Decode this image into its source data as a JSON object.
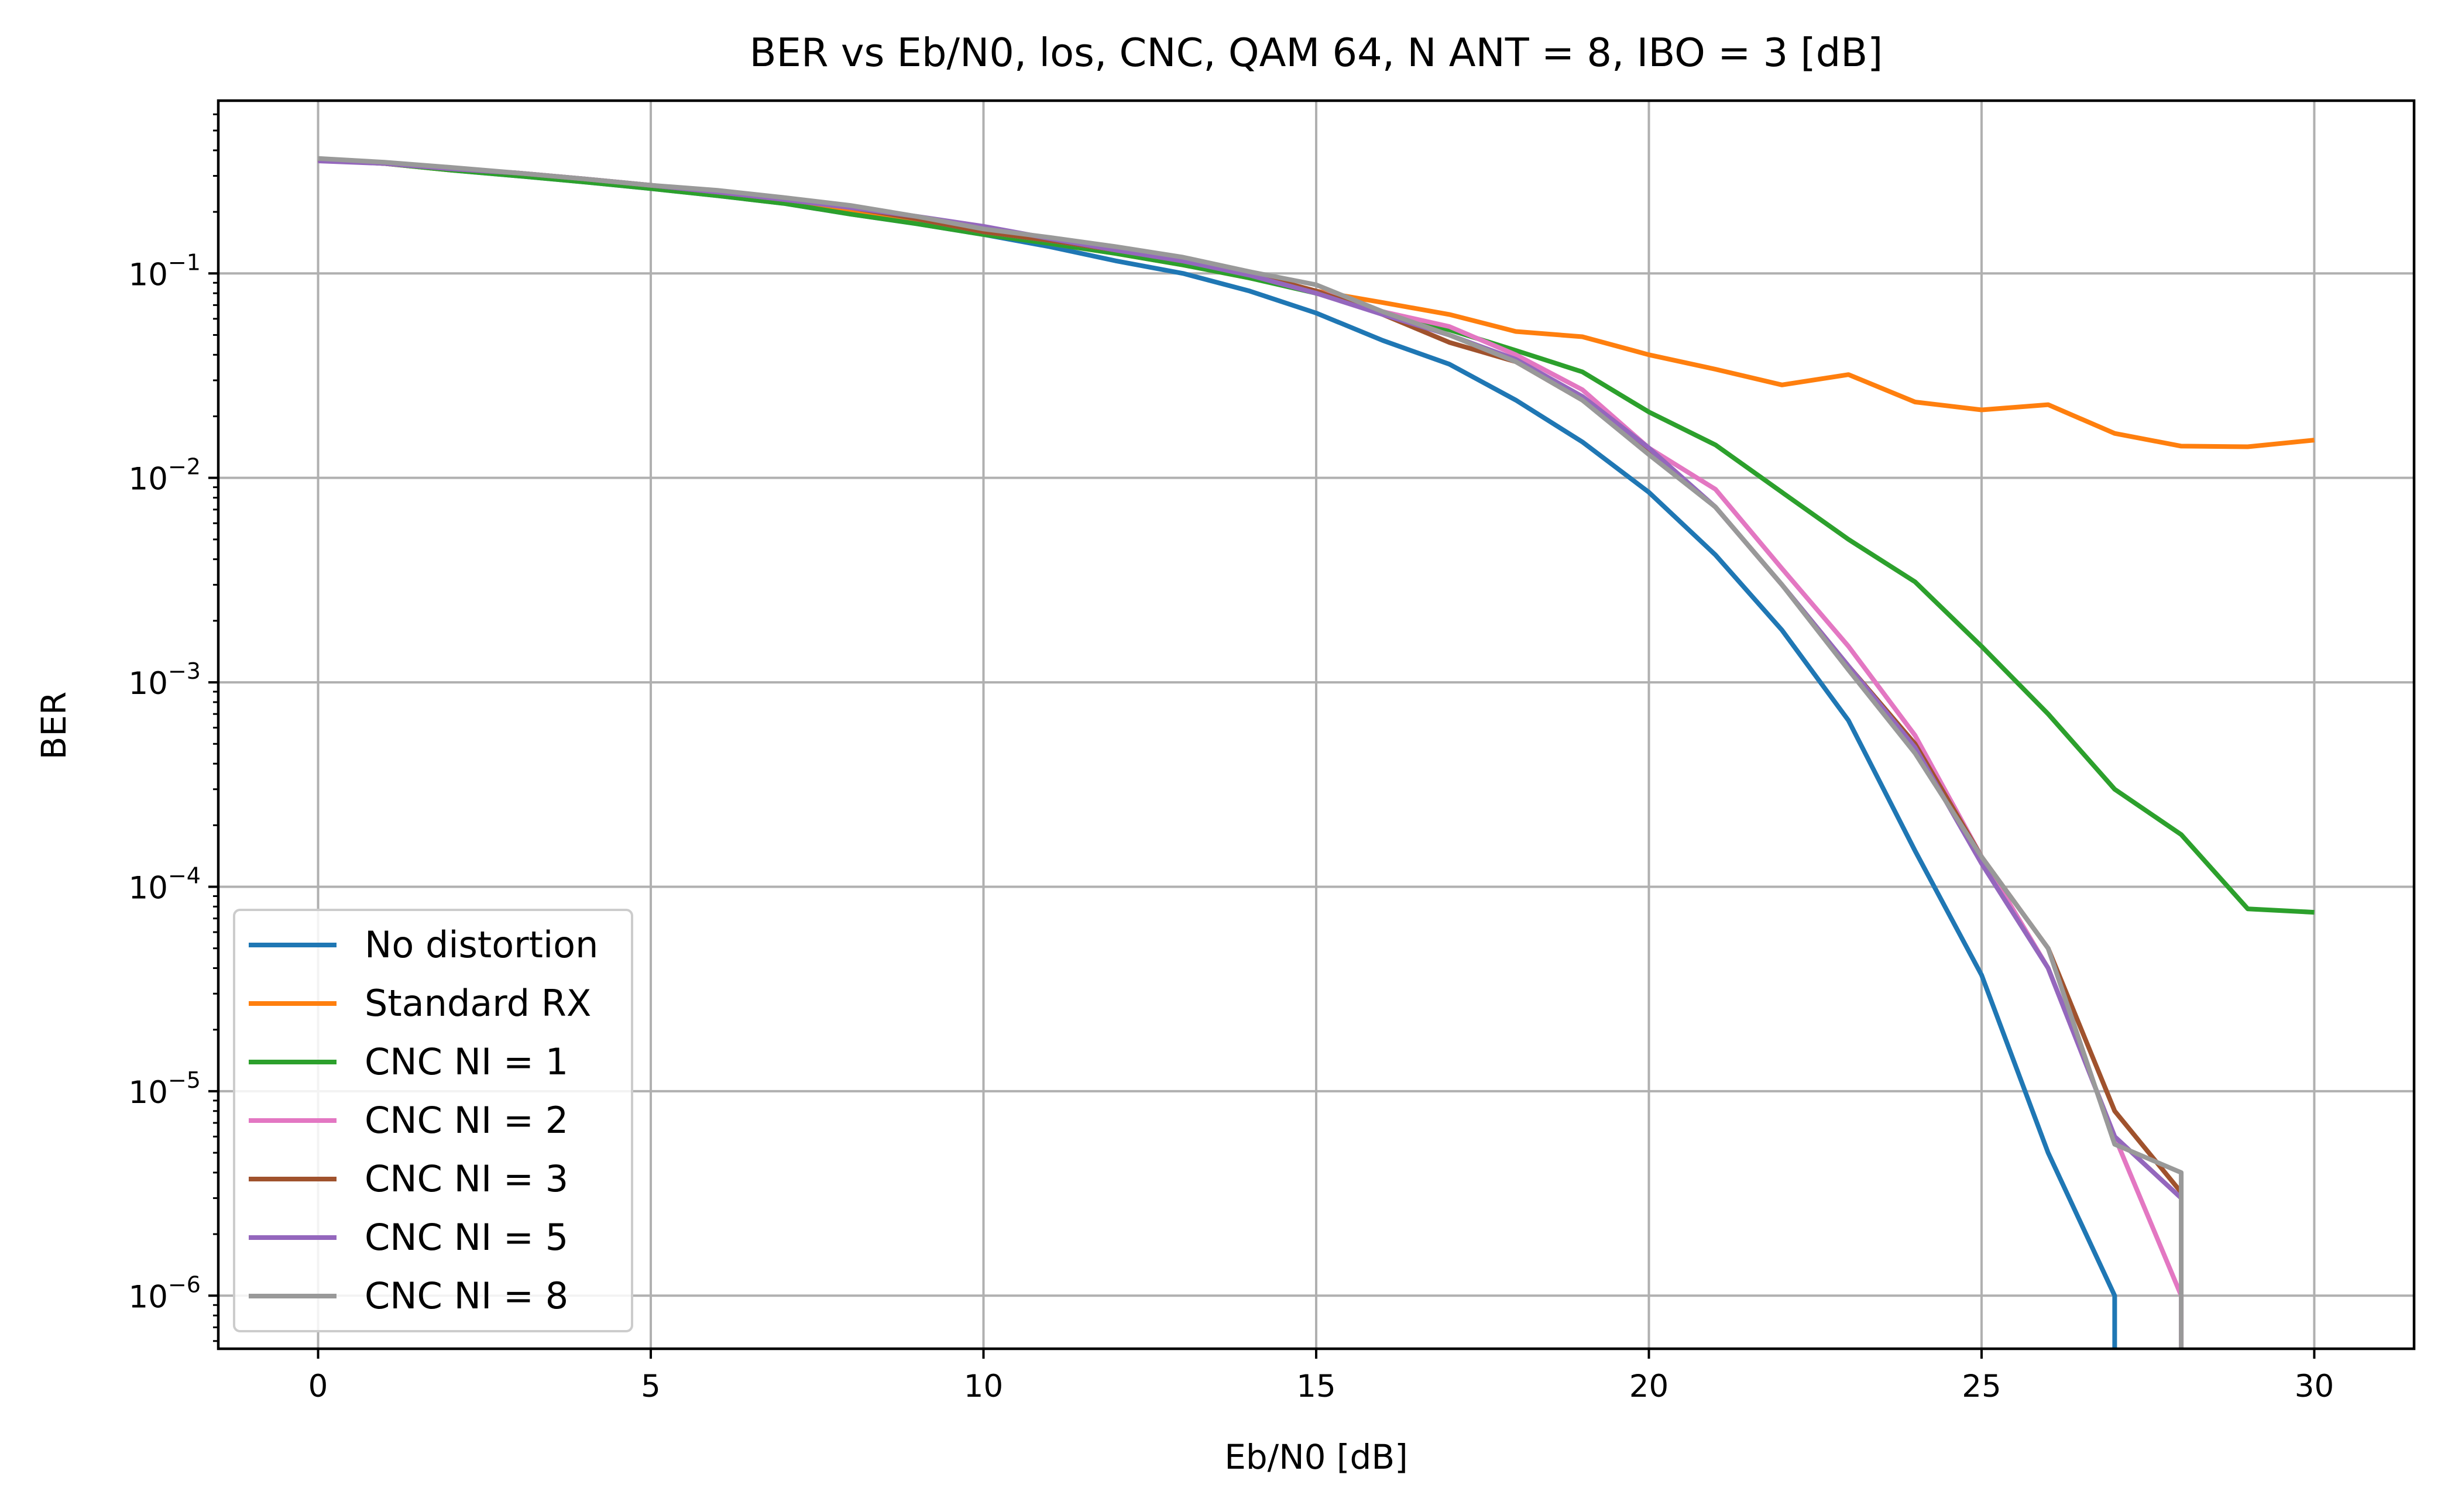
{
  "chart_data": {
    "type": "line",
    "title": "BER vs Eb/N0, los, CNC, QAM 64, N ANT = 8, IBO = 3 [dB]",
    "xlabel": "Eb/N0 [dB]",
    "ylabel": "BER",
    "xscale": "linear",
    "yscale": "log",
    "xlim": [
      -1.5,
      31.5
    ],
    "ylim": [
      5.5e-07,
      0.7
    ],
    "xticks": [
      0,
      5,
      10,
      15,
      20,
      25,
      30
    ],
    "xtick_labels": [
      "0",
      "5",
      "10",
      "15",
      "20",
      "25",
      "30"
    ],
    "yticks": [
      1e-06,
      1e-05,
      0.0001,
      0.001,
      0.01,
      0.1
    ],
    "ytick_labels": [
      {
        "base": "10",
        "exp": "−6"
      },
      {
        "base": "10",
        "exp": "−5"
      },
      {
        "base": "10",
        "exp": "−4"
      },
      {
        "base": "10",
        "exp": "−3"
      },
      {
        "base": "10",
        "exp": "−2"
      },
      {
        "base": "10",
        "exp": "−1"
      }
    ],
    "grid": true,
    "legend_position": "lower-left",
    "series": [
      {
        "name": "No distortion",
        "color": "#1f77b4",
        "x": [
          0,
          1,
          2,
          3,
          4,
          5,
          6,
          7,
          8,
          9,
          10,
          11,
          12,
          13,
          14,
          15,
          16,
          17,
          18,
          19,
          20,
          21,
          22,
          23,
          24,
          25,
          26,
          27,
          27
        ],
        "y": [
          0.36,
          0.345,
          0.32,
          0.3,
          0.28,
          0.26,
          0.24,
          0.22,
          0.195,
          0.175,
          0.155,
          0.135,
          0.115,
          0.1,
          0.082,
          0.064,
          0.047,
          0.036,
          0.024,
          0.015,
          0.0085,
          0.0042,
          0.0018,
          0.00065,
          0.00015,
          3.7e-05,
          5e-06,
          1e-06,
          5.5e-07
        ]
      },
      {
        "name": "Standard RX",
        "color": "#ff7f0e",
        "x": [
          0,
          1,
          2,
          3,
          4,
          5,
          6,
          7,
          8,
          9,
          10,
          11,
          12,
          13,
          14,
          15,
          16,
          17,
          18,
          19,
          20,
          21,
          22,
          23,
          24,
          25,
          26,
          27,
          28,
          29,
          30
        ],
        "y": [
          0.36,
          0.345,
          0.32,
          0.305,
          0.285,
          0.265,
          0.245,
          0.225,
          0.205,
          0.18,
          0.16,
          0.14,
          0.125,
          0.11,
          0.095,
          0.082,
          0.072,
          0.063,
          0.052,
          0.049,
          0.04,
          0.034,
          0.0285,
          0.032,
          0.0235,
          0.0215,
          0.0228,
          0.0165,
          0.0143,
          0.0142,
          0.0153
        ]
      },
      {
        "name": "CNC NI = 1",
        "color": "#2ca02c",
        "x": [
          0,
          1,
          2,
          3,
          4,
          5,
          6,
          7,
          8,
          9,
          10,
          11,
          12,
          13,
          14,
          15,
          16,
          17,
          18,
          19,
          20,
          21,
          22,
          23,
          24,
          25,
          26,
          27,
          28,
          29,
          30
        ],
        "y": [
          0.36,
          0.345,
          0.32,
          0.3,
          0.28,
          0.26,
          0.24,
          0.22,
          0.195,
          0.175,
          0.155,
          0.14,
          0.125,
          0.11,
          0.095,
          0.08,
          0.065,
          0.053,
          0.042,
          0.033,
          0.021,
          0.0145,
          0.0085,
          0.005,
          0.0031,
          0.0015,
          0.0007,
          0.0003,
          0.00018,
          7.8e-05,
          7.5e-05
        ]
      },
      {
        "name": "CNC NI = 2",
        "color": "#e377c2",
        "x": [
          0,
          1,
          2,
          3,
          4,
          5,
          6,
          7,
          8,
          9,
          10,
          11,
          12,
          13,
          14,
          15,
          16,
          17,
          18,
          19,
          20,
          21,
          22,
          23,
          24,
          25,
          26,
          27,
          28,
          28
        ],
        "y": [
          0.36,
          0.345,
          0.325,
          0.31,
          0.29,
          0.27,
          0.25,
          0.23,
          0.21,
          0.185,
          0.16,
          0.145,
          0.13,
          0.115,
          0.1,
          0.082,
          0.065,
          0.055,
          0.04,
          0.027,
          0.014,
          0.0088,
          0.0036,
          0.0015,
          0.00055,
          0.00014,
          4e-05,
          6e-06,
          1e-06,
          5.5e-07
        ]
      },
      {
        "name": "CNC NI = 3",
        "color": "#a0522d",
        "x": [
          0,
          1,
          2,
          3,
          4,
          5,
          6,
          7,
          8,
          9,
          10,
          11,
          12,
          13,
          14,
          15,
          16,
          17,
          18,
          19,
          20,
          21,
          22,
          23,
          24,
          25,
          26,
          27,
          28
        ],
        "y": [
          0.36,
          0.345,
          0.325,
          0.31,
          0.29,
          0.27,
          0.25,
          0.23,
          0.21,
          0.185,
          0.16,
          0.145,
          0.13,
          0.115,
          0.1,
          0.082,
          0.063,
          0.046,
          0.037,
          0.024,
          0.0135,
          0.0072,
          0.003,
          0.0012,
          0.0005,
          0.00014,
          5e-05,
          8e-06,
          3.2e-06
        ]
      },
      {
        "name": "CNC NI = 5",
        "color": "#9467bd",
        "x": [
          0,
          1,
          2,
          3,
          4,
          5,
          6,
          7,
          8,
          9,
          10,
          11,
          12,
          13,
          14,
          15,
          16,
          17,
          18,
          19,
          20,
          21,
          22,
          23,
          24,
          25,
          26,
          27,
          28
        ],
        "y": [
          0.355,
          0.345,
          0.325,
          0.31,
          0.29,
          0.27,
          0.25,
          0.23,
          0.21,
          0.19,
          0.17,
          0.148,
          0.13,
          0.115,
          0.098,
          0.08,
          0.063,
          0.05,
          0.038,
          0.025,
          0.014,
          0.0072,
          0.003,
          0.0012,
          0.00048,
          0.00013,
          4e-05,
          6e-06,
          3e-06
        ]
      },
      {
        "name": "CNC NI = 8",
        "color": "#999999",
        "x": [
          0,
          1,
          2,
          3,
          4,
          5,
          6,
          7,
          8,
          9,
          10,
          11,
          12,
          13,
          14,
          15,
          16,
          17,
          18,
          19,
          20,
          21,
          22,
          23,
          24,
          25,
          26,
          27,
          28,
          28
        ],
        "y": [
          0.365,
          0.35,
          0.33,
          0.31,
          0.29,
          0.27,
          0.255,
          0.235,
          0.215,
          0.19,
          0.165,
          0.15,
          0.135,
          0.12,
          0.102,
          0.088,
          0.065,
          0.05,
          0.037,
          0.024,
          0.013,
          0.0072,
          0.003,
          0.00115,
          0.00045,
          0.00014,
          5e-05,
          5.5e-06,
          4e-06,
          5.5e-07
        ]
      }
    ]
  }
}
